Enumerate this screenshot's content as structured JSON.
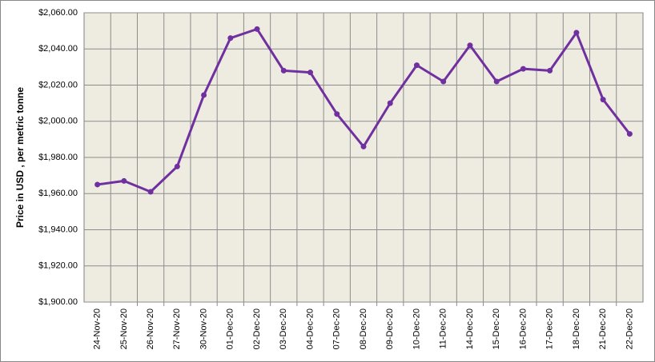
{
  "chart_data": {
    "type": "line",
    "y_label": "Price in USD , per metric tonne",
    "categories": [
      "24-Nov-20",
      "25-Nov-20",
      "26-Nov-20",
      "27-Nov-20",
      "30-Nov-20",
      "01-Dec-20",
      "02-Dec-20",
      "03-Dec-20",
      "04-Dec-20",
      "07-Dec-20",
      "08-Dec-20",
      "09-Dec-20",
      "10-Dec-20",
      "11-Dec-20",
      "14-Dec-20",
      "15-Dec-20",
      "16-Dec-20",
      "17-Dec-20",
      "18-Dec-20",
      "21-Dec-20",
      "22-Dec-20"
    ],
    "values": [
      1965,
      1967,
      1961,
      1975,
      2014.5,
      2046,
      2051,
      2028,
      2027,
      2004,
      1986,
      2010,
      2031,
      2022,
      2042,
      2022,
      2029,
      2028,
      2049,
      2012,
      1993
    ],
    "color": "#7030a0",
    "ylim": [
      1900,
      2060
    ],
    "yticks": [
      {
        "value": 1900,
        "label": "$1,900.00"
      },
      {
        "value": 1920,
        "label": "$1,920.00"
      },
      {
        "value": 1940,
        "label": "$1,940.00"
      },
      {
        "value": 1960,
        "label": "$1,960.00"
      },
      {
        "value": 1980,
        "label": "$1,980.00"
      },
      {
        "value": 2000,
        "label": "$2,000.00"
      },
      {
        "value": 2020,
        "label": "$2,020.00"
      },
      {
        "value": 2040,
        "label": "$2,040.00"
      },
      {
        "value": 2060,
        "label": "$2,060.00"
      }
    ],
    "grid": true
  }
}
